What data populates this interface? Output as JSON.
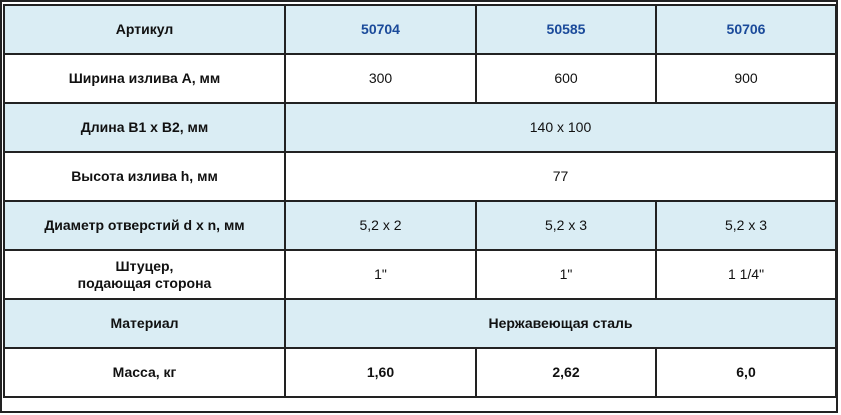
{
  "table": {
    "header": {
      "label": "Артикул",
      "values": [
        "50704",
        "50585",
        "50706"
      ],
      "accent_color": "#1a4a9a",
      "row_bg": "#daedf4"
    },
    "rows": [
      {
        "label": "Ширина излива А, мм",
        "values": [
          "300",
          "600",
          "900"
        ]
      },
      {
        "label": "Длина В1 х В2, мм",
        "value": "140 х 100"
      },
      {
        "label": "Высота излива h, мм",
        "value": "77"
      },
      {
        "label": "Диаметр отверстий d x n, мм",
        "values": [
          "5,2 х 2",
          "5,2 х 3",
          "5,2 х 3"
        ]
      },
      {
        "label_line1": "Штуцер,",
        "label_line2": "подающая сторона",
        "values": [
          "1\"",
          "1\"",
          "1 1/4\""
        ]
      },
      {
        "label": "Материал",
        "value": "Нержавеющая сталь"
      },
      {
        "label": "Масса, кг",
        "values": [
          "1,60",
          "2,62",
          "6,0"
        ]
      }
    ]
  }
}
